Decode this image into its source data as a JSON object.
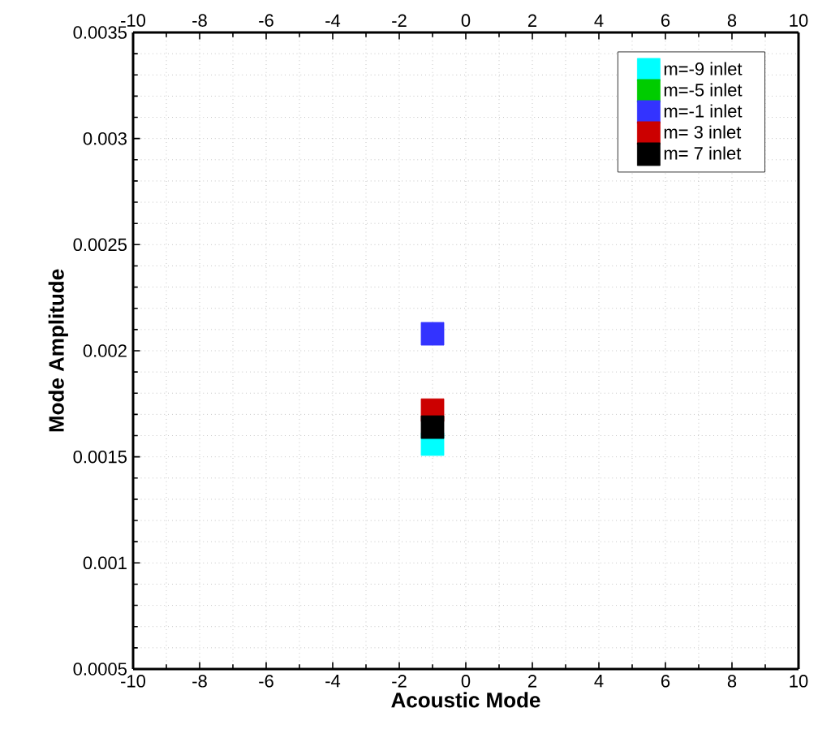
{
  "chart_data": {
    "type": "scatter",
    "xlabel": "Acoustic Mode",
    "ylabel": "Mode Amplitude",
    "x": [
      -1
    ],
    "series": [
      {
        "name": "m=-9 inlet",
        "color": "#00ffff",
        "values": [
          0.00156
        ]
      },
      {
        "name": "m=-5 inlet",
        "color": "#00cc00",
        "values": [
          null
        ]
      },
      {
        "name": "m=-1 inlet",
        "color": "#3333ff",
        "values": [
          0.00208
        ]
      },
      {
        "name": "m= 3 inlet",
        "color": "#cc0000",
        "values": [
          0.00172
        ]
      },
      {
        "name": "m= 7 inlet",
        "color": "#000000",
        "values": [
          0.00164
        ]
      }
    ],
    "xlim": [
      -10,
      10
    ],
    "xticks": [
      -10,
      -8,
      -6,
      -4,
      -2,
      0,
      2,
      4,
      6,
      8,
      10
    ],
    "x2lim": [
      -10,
      10
    ],
    "x2ticks": [
      -10,
      -8,
      -6,
      -4,
      -2,
      0,
      2,
      4,
      6,
      8,
      10
    ],
    "ylim": [
      0.0005,
      0.0035
    ],
    "yticks": [
      0.0005,
      0.001,
      0.0015,
      0.002,
      0.0025,
      0.003,
      0.0035
    ],
    "grid": true,
    "legend": "top right",
    "marker": "square"
  }
}
